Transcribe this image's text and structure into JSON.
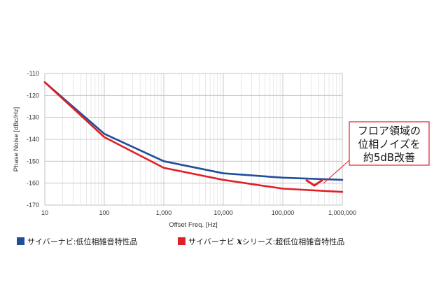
{
  "chart_data": {
    "type": "line",
    "x_scale": "log",
    "xlabel": "Offset Freq. [Hz]",
    "ylabel": "Phase Noise [dBc/Hz]",
    "xlim": [
      10,
      1000000
    ],
    "ylim": [
      -170,
      -110
    ],
    "x_ticks": [
      10,
      100,
      1000,
      10000,
      100000,
      1000000
    ],
    "x_tick_labels": [
      "10",
      "100",
      "1,000",
      "10,000",
      "100,000",
      "1,000,000"
    ],
    "y_ticks": [
      -110,
      -120,
      -130,
      -140,
      -150,
      -160,
      -170
    ],
    "y_tick_labels": [
      "-110",
      "-120",
      "-130",
      "-140",
      "-150",
      "-160",
      "-170"
    ],
    "grid": true,
    "legend_position": "bottom",
    "series": [
      {
        "name": "サイバーナビ:低位相雑音特性品",
        "color": "#1f4e9c",
        "x": [
          10,
          100,
          1000,
          10000,
          100000,
          1000000
        ],
        "y": [
          -114,
          -137.5,
          -150,
          -155.5,
          -157.5,
          -158.5
        ]
      },
      {
        "name_prefix": "サイバーナビ ",
        "name_x": "x",
        "name_suffix": "シリーズ:超低位相雑音特性品",
        "color": "#e01f26",
        "x": [
          10,
          100,
          1000,
          10000,
          100000,
          1000000
        ],
        "y": [
          -114,
          -139,
          -153,
          -158.5,
          -162.5,
          -164
        ]
      }
    ],
    "annotation": {
      "lines": [
        "フロア領域の",
        "位相ノイズを",
        "約5dB改善"
      ],
      "color": "#e01f26"
    }
  }
}
